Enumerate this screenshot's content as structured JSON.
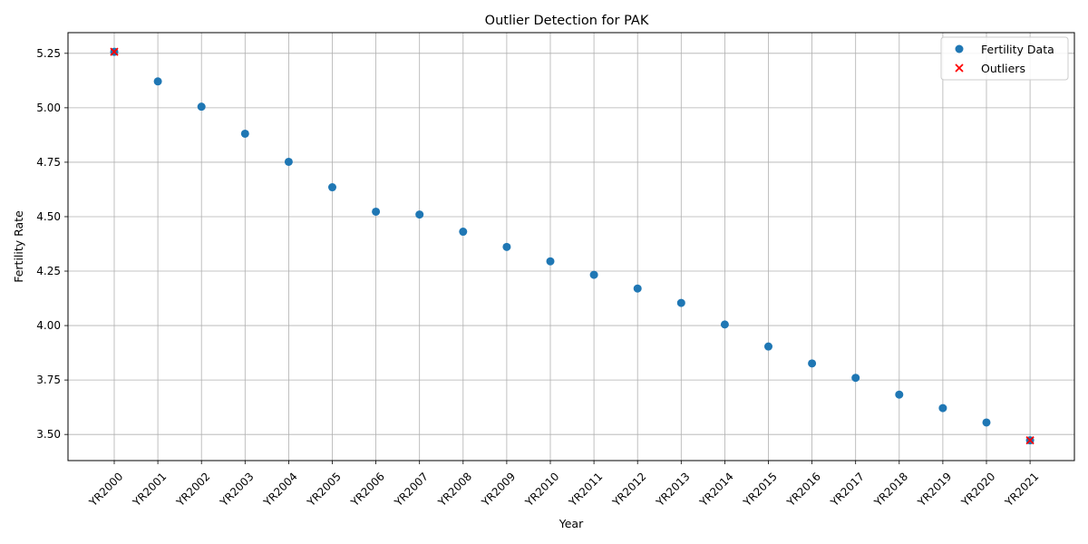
{
  "chart_data": {
    "type": "scatter",
    "title": "Outlier Detection for PAK",
    "xlabel": "Year",
    "ylabel": "Fertility Rate",
    "categories": [
      "YR2000",
      "YR2001",
      "YR2002",
      "YR2003",
      "YR2004",
      "YR2005",
      "YR2006",
      "YR2007",
      "YR2008",
      "YR2009",
      "YR2010",
      "YR2011",
      "YR2012",
      "YR2013",
      "YR2014",
      "YR2015",
      "YR2016",
      "YR2017",
      "YR2018",
      "YR2019",
      "YR2020",
      "YR2021"
    ],
    "series": [
      {
        "name": "Fertility Data",
        "color": "#1f77b4",
        "marker": "circle",
        "values": [
          5.257,
          5.121,
          5.005,
          4.881,
          4.752,
          4.635,
          4.523,
          4.51,
          4.431,
          4.361,
          4.295,
          4.233,
          4.17,
          4.104,
          4.005,
          3.904,
          3.826,
          3.76,
          3.683,
          3.621,
          3.555,
          3.473
        ]
      },
      {
        "name": "Outliers",
        "color": "#ff0000",
        "marker": "x",
        "categories": [
          "YR2000",
          "YR2021"
        ],
        "values": [
          5.257,
          3.473
        ]
      }
    ],
    "ylim": [
      3.38,
      5.345
    ],
    "yticks": [
      "3.50",
      "3.75",
      "4.00",
      "4.25",
      "4.50",
      "4.75",
      "5.00",
      "5.25"
    ],
    "grid": true,
    "legend_position": "upper right"
  }
}
